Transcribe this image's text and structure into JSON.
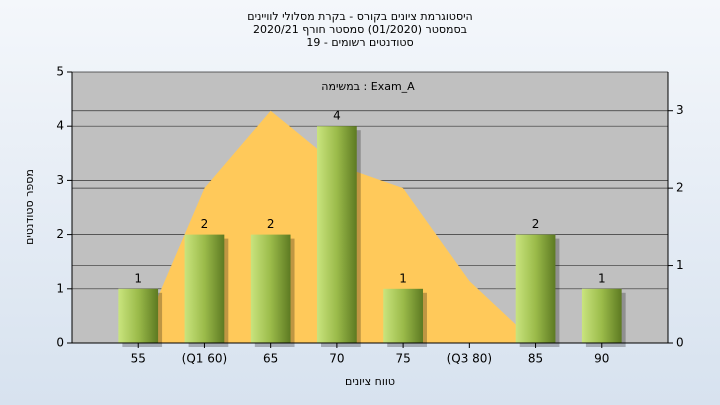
{
  "chart_data": {
    "type": "bar",
    "title": [
      "היסטוגרמת ציונים בקורס - בקרת מסלולי לוויינים",
      "בסמסטר  (01/2020)  סמסטר חורף 2020/21",
      "סטודנטים רשומים - 19"
    ],
    "annotation": "במשימה : Exam_A",
    "xlabel": "טווח ציונים",
    "ylabel": "מספר סטודנטים",
    "categories": [
      "55",
      "(Q1 60)",
      "65",
      "70",
      "75",
      "(Q3 80)",
      "85",
      "90"
    ],
    "series": [
      {
        "type": "bar",
        "color": "#9bbb4a",
        "values": [
          1,
          2,
          2,
          4,
          1,
          null,
          2,
          1
        ],
        "value_labels": [
          "1",
          "2",
          "2",
          "4",
          "1",
          null,
          "2",
          "1"
        ]
      },
      {
        "type": "area",
        "axis": "y2",
        "color": "#ffc95a",
        "values": [
          0,
          2,
          3,
          2.3,
          2,
          0.8,
          0,
          0
        ]
      }
    ],
    "ylim": [
      0,
      5
    ],
    "yticks": [
      0,
      1,
      2,
      3,
      4,
      5
    ],
    "y2lim": [
      0,
      3.5
    ],
    "y2ticks": [
      0,
      1,
      2,
      3
    ],
    "grid": true
  }
}
